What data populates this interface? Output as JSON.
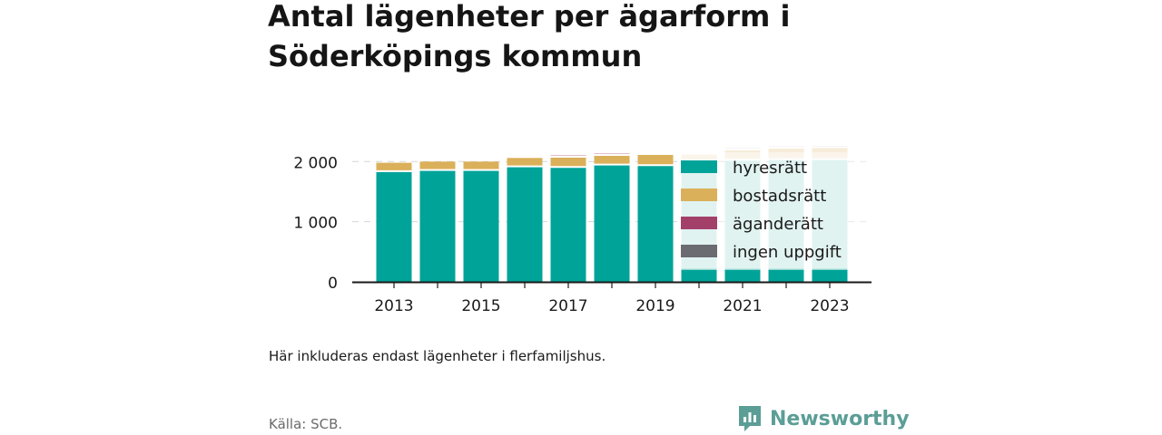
{
  "title": "Antal lägenheter per ägarform i Söderköpings kommun",
  "note": "Här inkluderas endast lägenheter i flerfamiljshus.",
  "source": "Källa: SCB.",
  "logo": {
    "text": "Newsworthy"
  },
  "colors": {
    "hyresratt": "#00a398",
    "bostadsratt": "#dbb05a",
    "aganderatt": "#a3406a",
    "ingen_uppgift": "#6b6b72",
    "faded_hyresratt": "#c6e9e5",
    "faded_bostadsratt": "#f6ecd9",
    "axis": "#1a1a1a",
    "grid": "#d6d6d6",
    "logo": "#5b9e96"
  },
  "chart_data": {
    "type": "bar",
    "stacked": true,
    "categories": [
      "2013",
      "2014",
      "2015",
      "2016",
      "2017",
      "2018",
      "2019",
      "2020",
      "2021",
      "2022",
      "2023"
    ],
    "x_tick_labels": [
      "2013",
      "2015",
      "2017",
      "2019",
      "2021",
      "2023"
    ],
    "series": [
      {
        "name": "hyresrätt",
        "values": [
          1840,
          1860,
          1860,
          1920,
          1910,
          1950,
          1940,
          2020,
          2030,
          2040,
          2040
        ]
      },
      {
        "name": "bostadsrätt",
        "values": [
          140,
          140,
          140,
          140,
          170,
          160,
          170,
          110,
          170,
          190,
          200
        ]
      },
      {
        "name": "äganderätt",
        "values": [
          0,
          0,
          0,
          0,
          20,
          20,
          0,
          10,
          20,
          20,
          20
        ]
      },
      {
        "name": "ingen uppgift",
        "values": [
          0,
          0,
          0,
          0,
          0,
          0,
          0,
          0,
          0,
          0,
          0
        ]
      }
    ],
    "y_tick_labels": [
      "0",
      "1 000",
      "2 000"
    ],
    "y_ticks": [
      0,
      1000,
      2000
    ],
    "ylim": [
      0,
      2200
    ],
    "grid": true,
    "legend_position": "right-inside",
    "faded_from_index": 7
  }
}
